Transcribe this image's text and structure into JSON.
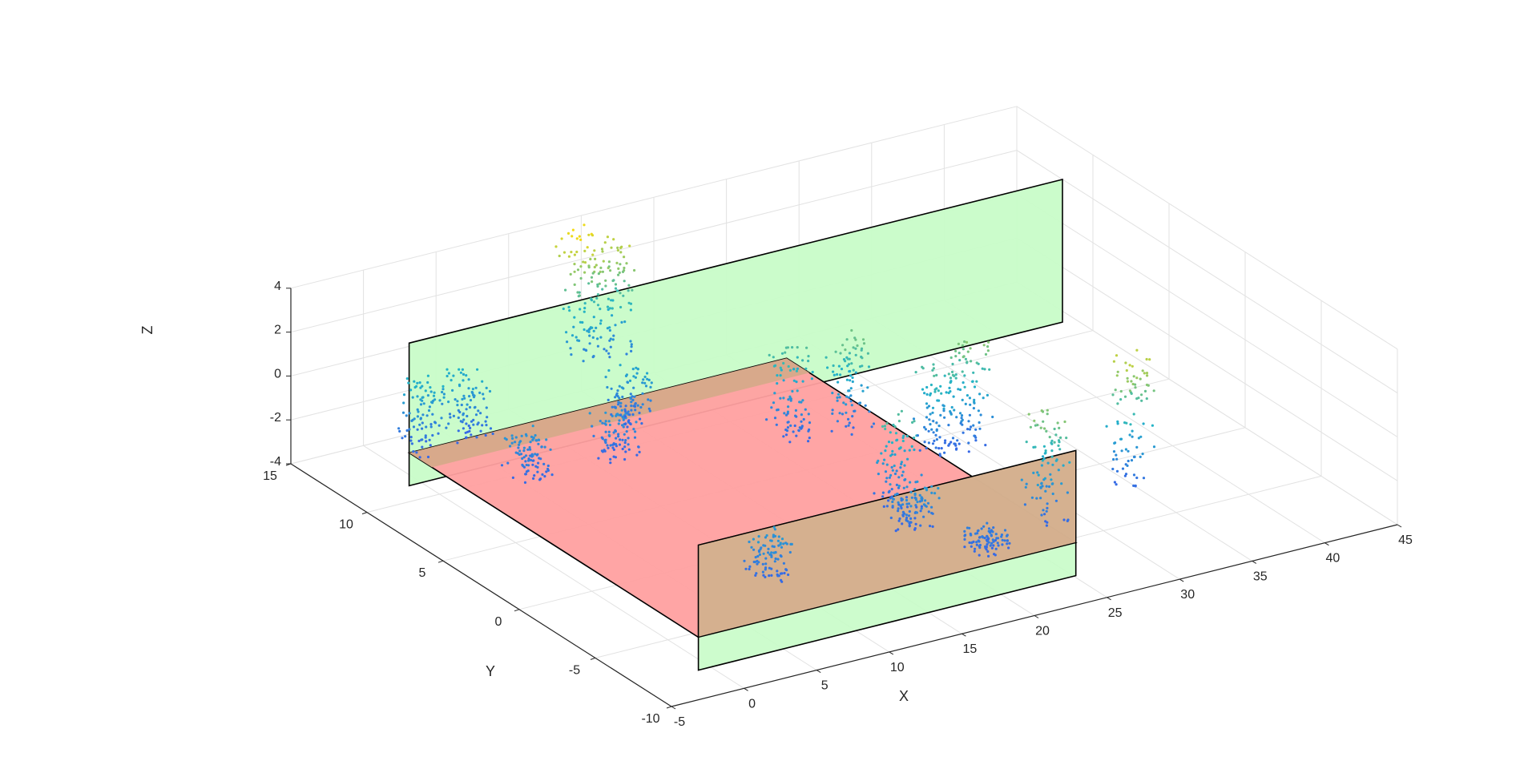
{
  "chart_data": {
    "type": "scatter3d",
    "title": "",
    "xlabel": "X",
    "ylabel": "Y",
    "zlabel": "Z",
    "xlim": [
      -5,
      45
    ],
    "ylim": [
      -10,
      15
    ],
    "zlim": [
      -4,
      4
    ],
    "xticks": [
      "-5",
      "0",
      "5",
      "10",
      "15",
      "20",
      "25",
      "30",
      "35",
      "40",
      "45"
    ],
    "yticks": [
      "-10",
      "-5",
      "0",
      "5",
      "10",
      "15"
    ],
    "zticks": [
      "-4",
      "-2",
      "0",
      "2",
      "4"
    ],
    "grid": true,
    "colormap": "parula (colored by Z height)",
    "colors": {
      "ground_region": "#ffa0a0",
      "wall_regions": "#c8fcc8",
      "overlap_region": "#d6a98a",
      "low_points": "#3e4ef0",
      "mid_points": "#22b4c8",
      "high_points": "#f9dc12"
    },
    "regions": [
      {
        "name": "ground plane",
        "x": [
          0,
          26
        ],
        "y": [
          -7,
          12
        ],
        "z": [
          -3,
          -3
        ]
      },
      {
        "name": "left boundary wall",
        "x": [
          0,
          45
        ],
        "y": [
          12,
          12
        ],
        "z": [
          -4.5,
          2
        ]
      },
      {
        "name": "right boundary wall",
        "x": [
          0,
          26
        ],
        "y": [
          -7,
          -7
        ],
        "z": [
          -4.5,
          1.2
        ]
      }
    ],
    "clusters": [
      {
        "x": 1,
        "y": 12,
        "z": [
          -3,
          0
        ]
      },
      {
        "x": 4,
        "y": 8,
        "z": [
          -3,
          -1
        ]
      },
      {
        "x": 4,
        "y": 12,
        "z": [
          -3,
          0
        ]
      },
      {
        "x": 10,
        "y": 8,
        "z": [
          -3,
          -1
        ]
      },
      {
        "x": 13,
        "y": 10,
        "z": [
          -3,
          -0.5
        ]
      },
      {
        "x": 14,
        "y": 14,
        "z": [
          -2,
          4
        ]
      },
      {
        "x": 16,
        "y": 14,
        "z": [
          -2,
          3
        ]
      },
      {
        "x": 20,
        "y": 6,
        "z": [
          -3,
          1
        ]
      },
      {
        "x": 23,
        "y": 5,
        "z": [
          -3,
          1.5
        ]
      },
      {
        "x": 20,
        "y": -1,
        "z": [
          -3,
          1
        ]
      },
      {
        "x": 26,
        "y": 2,
        "z": [
          -3,
          1
        ]
      },
      {
        "x": 28,
        "y": 2,
        "z": [
          -3,
          2
        ]
      },
      {
        "x": 26,
        "y": -5,
        "z": [
          -3,
          2
        ]
      },
      {
        "x": 33,
        "y": -4,
        "z": [
          -3,
          3
        ]
      },
      {
        "x": 19,
        "y": -3,
        "z": [
          -3,
          -1
        ]
      },
      {
        "x": 21,
        "y": -6,
        "z": [
          -3,
          -2
        ]
      },
      {
        "x": 8,
        "y": -4,
        "z": [
          -3,
          -1
        ]
      }
    ]
  }
}
